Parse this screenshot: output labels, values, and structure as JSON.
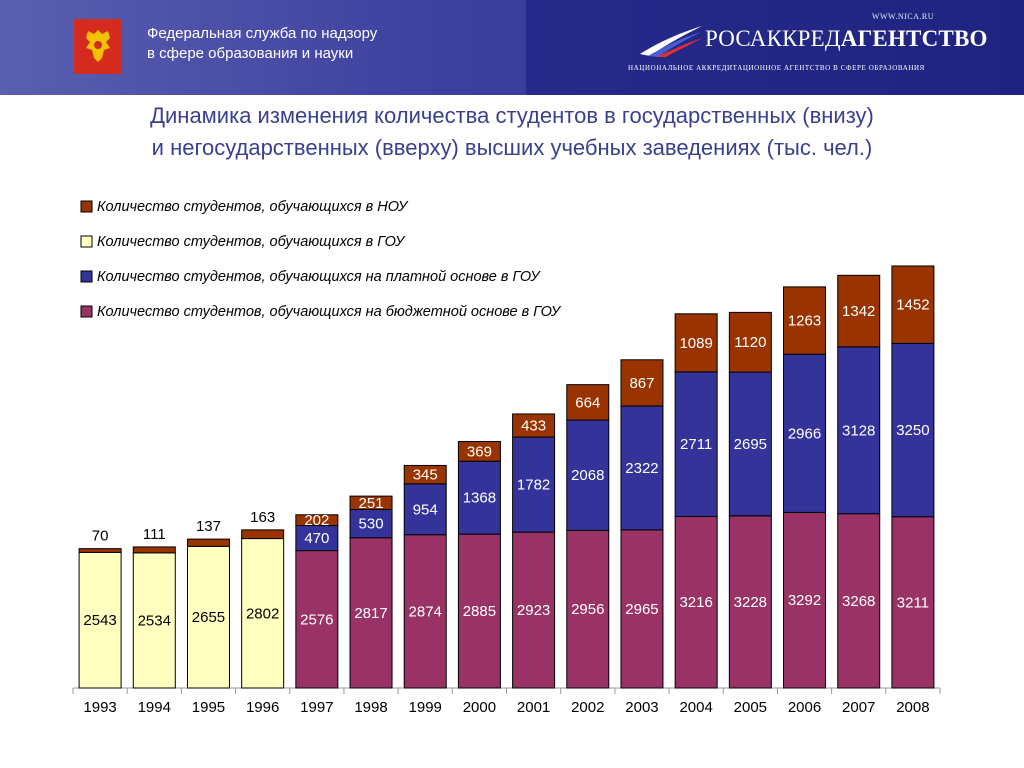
{
  "header": {
    "agency_line1": "Федеральная служба по надзору",
    "agency_line2": "в сфере образования и науки",
    "site": "WWW.NICA.RU",
    "brand_a": "РОСАККРЕД",
    "brand_b": "АГЕНТСТВО",
    "brand_sub": "НАЦИОНАЛЬНОЕ АККРЕДИТАЦИОННОЕ АГЕНТСТВО В СФЕРЕ ОБРАЗОВАНИЯ",
    "emblem_icon": "coat-of-arms-icon",
    "logo_icon": "flag-swoosh-icon"
  },
  "title_line1": "Динамика изменения количества студентов в государственных (внизу)",
  "title_line2": "и негосударственных (вверху) высших учебных заведениях (тыс. чел.)",
  "chart_data": {
    "type": "bar",
    "stacked": true,
    "categories": [
      "1993",
      "1994",
      "1995",
      "1996",
      "1997",
      "1998",
      "1999",
      "2000",
      "2001",
      "2002",
      "2003",
      "2004",
      "2005",
      "2006",
      "2007",
      "2008"
    ],
    "series": [
      {
        "key": "budget",
        "name": "Количество студентов, обучающихся на бюджетной основе в ГОУ",
        "color": "#993366",
        "values": [
          null,
          null,
          null,
          null,
          2576,
          2817,
          2874,
          2885,
          2923,
          2956,
          2965,
          3216,
          3228,
          3292,
          3268,
          3211
        ]
      },
      {
        "key": "gou",
        "name": "Количество студентов, обучающихся в ГОУ",
        "color": "#ffffc0",
        "values": [
          2543,
          2534,
          2655,
          2802,
          null,
          null,
          null,
          null,
          null,
          null,
          null,
          null,
          null,
          null,
          null,
          null
        ]
      },
      {
        "key": "paid",
        "name": "Количество студентов, обучающихся на платной основе в ГОУ",
        "color": "#333399",
        "values": [
          null,
          null,
          null,
          null,
          470,
          530,
          954,
          1368,
          1782,
          2068,
          2322,
          2711,
          2695,
          2966,
          3128,
          3250
        ]
      },
      {
        "key": "nou",
        "name": "Количество студентов, обучающихся в НОУ",
        "color": "#993300",
        "values": [
          70,
          111,
          137,
          163,
          202,
          251,
          345,
          369,
          433,
          664,
          867,
          1089,
          1120,
          1263,
          1342,
          1452
        ]
      }
    ],
    "legend_order": [
      "nou",
      "gou",
      "paid",
      "budget"
    ],
    "legend_position": "top-left",
    "ylim": [
      0,
      8000
    ],
    "grid": false,
    "xlabel": "",
    "ylabel": ""
  }
}
